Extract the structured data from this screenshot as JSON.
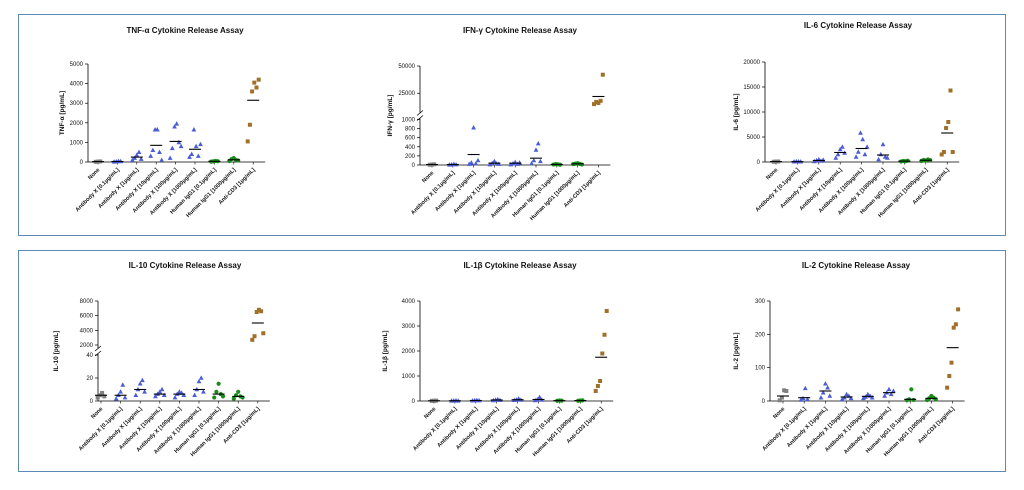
{
  "colors": {
    "border": "#5b8ab8",
    "none": "#808080",
    "antibody": "#4a5cd6",
    "igg": "#1a8a1a",
    "cd3": "#a0702a"
  },
  "chart_data": [
    {
      "type": "scatter",
      "title": "TNF-α Cytokine Release Assay",
      "ylabel": "TNF-α [pg/mL]",
      "ylim": [
        0,
        5000
      ],
      "yticks": [
        "0",
        "1000",
        "2000",
        "3000",
        "4000",
        "5000"
      ],
      "ytick_values": [
        0,
        1000,
        2000,
        3000,
        4000,
        5000
      ],
      "categories": [
        "None",
        "Antibody X [0.1µg/mL]",
        "Antibody X [1µg/mL]",
        "Antibody X [10µg/mL]",
        "Antibody X [100µg/mL]",
        "Antibody X [1000µg/mL]",
        "Human IgG1 [0.1µg/mL]",
        "Human IgG1 [1000µg/mL]",
        "Anti-CD3 [1µg/mL]"
      ],
      "groups": [
        {
          "values": [
            10,
            20,
            30
          ],
          "mean": 20,
          "marker": "square",
          "color": "none"
        },
        {
          "values": [
            10,
            20,
            40,
            30
          ],
          "mean": 25,
          "marker": "triangle",
          "color": "antibody"
        },
        {
          "values": [
            100,
            200,
            350,
            500,
            150
          ],
          "mean": 250,
          "marker": "triangle",
          "color": "antibody"
        },
        {
          "values": [
            300,
            600,
            1650,
            1650,
            500,
            100
          ],
          "mean": 850,
          "marker": "triangle",
          "color": "antibody"
        },
        {
          "values": [
            200,
            700,
            1800,
            1950,
            1000,
            800
          ],
          "mean": 1050,
          "marker": "triangle",
          "color": "antibody"
        },
        {
          "values": [
            250,
            400,
            1650,
            800,
            300,
            900
          ],
          "mean": 650,
          "marker": "triangle",
          "color": "antibody"
        },
        {
          "values": [
            20,
            30,
            50,
            40
          ],
          "mean": 35,
          "marker": "circle",
          "color": "igg"
        },
        {
          "values": [
            50,
            150,
            200,
            100,
            80
          ],
          "mean": 110,
          "marker": "circle",
          "color": "igg"
        },
        {
          "values": [
            1050,
            1900,
            3600,
            4050,
            3800,
            4200
          ],
          "mean": 3150,
          "marker": "square",
          "color": "cd3"
        }
      ]
    },
    {
      "type": "scatter",
      "title": "IFN-γ Cytokine Release Assay",
      "ylabel": "IFN-γ [pg/mL]",
      "ylim": [
        0,
        50000
      ],
      "axis_break": {
        "lower_max": 1000,
        "upper_min": 10000,
        "upper_max": 50000
      },
      "yticks": [
        "0",
        "200",
        "400",
        "600",
        "800",
        "1000",
        "25000",
        "50000"
      ],
      "ytick_values": [
        0,
        200,
        400,
        600,
        800,
        1000,
        25000,
        50000
      ],
      "categories": [
        "None",
        "Antibody X [0.1µg/mL]",
        "Antibody X [1µg/mL]",
        "Antibody X [10µg/mL]",
        "Antibody X [100µg/mL]",
        "Antibody X [1000µg/mL]",
        "Human IgG1 [0.1µg/mL]",
        "Human IgG1 [1000µg/mL]",
        "Anti-CD3 [1µg/mL]"
      ],
      "groups": [
        {
          "values": [
            5,
            10,
            15
          ],
          "mean": 10,
          "marker": "square",
          "color": "none"
        },
        {
          "values": [
            5,
            10,
            20,
            8
          ],
          "mean": 10,
          "marker": "triangle",
          "color": "antibody"
        },
        {
          "values": [
            20,
            50,
            820,
            30,
            100
          ],
          "mean": 230,
          "marker": "triangle",
          "color": "antibody"
        },
        {
          "values": [
            10,
            40,
            80,
            30,
            20
          ],
          "mean": 40,
          "marker": "triangle",
          "color": "antibody"
        },
        {
          "values": [
            10,
            30,
            60,
            20,
            50
          ],
          "mean": 40,
          "marker": "triangle",
          "color": "antibody"
        },
        {
          "values": [
            30,
            100,
            330,
            470,
            80
          ],
          "mean": 150,
          "marker": "triangle",
          "color": "antibody"
        },
        {
          "values": [
            10,
            20,
            15,
            5
          ],
          "mean": 12,
          "marker": "circle",
          "color": "igg"
        },
        {
          "values": [
            20,
            30,
            40,
            25,
            10
          ],
          "mean": 25,
          "marker": "circle",
          "color": "igg"
        },
        {
          "values": [
            15000,
            17000,
            16000,
            18000,
            42000
          ],
          "mean": 22000,
          "marker": "square",
          "color": "cd3"
        }
      ]
    },
    {
      "type": "scatter",
      "title": "IL-6 Cytokine Release Assay",
      "ylabel": "IL-6 [pg/mL]",
      "ylim": [
        0,
        20000
      ],
      "yticks": [
        "0",
        "5000",
        "10000",
        "15000",
        "20000"
      ],
      "ytick_values": [
        0,
        5000,
        10000,
        15000,
        20000
      ],
      "categories": [
        "None",
        "Antibody X [0.1µg/mL]",
        "Antibody X [1µg/mL]",
        "Antibody X [10µg/mL]",
        "Antibody X [100µg/mL]",
        "Antibody X [1000µg/mL]",
        "Human IgG1 [0.1µg/mL]",
        "Human IgG1 [1000µg/mL]",
        "Anti-CD3 [1µg/mL]"
      ],
      "groups": [
        {
          "values": [
            50,
            80,
            100
          ],
          "mean": 80,
          "marker": "square",
          "color": "none"
        },
        {
          "values": [
            50,
            100,
            80,
            60
          ],
          "mean": 70,
          "marker": "triangle",
          "color": "antibody"
        },
        {
          "values": [
            100,
            300,
            500,
            200,
            400
          ],
          "mean": 300,
          "marker": "triangle",
          "color": "antibody"
        },
        {
          "values": [
            800,
            1500,
            2500,
            3000,
            1800
          ],
          "mean": 1900,
          "marker": "triangle",
          "color": "antibody"
        },
        {
          "values": [
            1000,
            2000,
            5800,
            4500,
            1500,
            3000
          ],
          "mean": 2700,
          "marker": "triangle",
          "color": "antibody"
        },
        {
          "values": [
            500,
            1500,
            3500,
            1000,
            800
          ],
          "mean": 1400,
          "marker": "triangle",
          "color": "antibody"
        },
        {
          "values": [
            100,
            200,
            150,
            250
          ],
          "mean": 180,
          "marker": "circle",
          "color": "igg"
        },
        {
          "values": [
            200,
            400,
            300,
            500,
            350
          ],
          "mean": 350,
          "marker": "circle",
          "color": "igg"
        },
        {
          "values": [
            1500,
            2000,
            6800,
            8000,
            14300,
            2000
          ],
          "mean": 5800,
          "marker": "square",
          "color": "cd3"
        }
      ]
    },
    {
      "type": "scatter",
      "title": "IL-10 Cytokine Release Assay",
      "ylabel": "IL-10 [pg/mL]",
      "ylim": [
        0,
        8000
      ],
      "axis_break": {
        "lower_max": 40,
        "upper_min": 2000,
        "upper_max": 8000
      },
      "yticks": [
        "0",
        "20",
        "40",
        "2000",
        "4000",
        "6000",
        "8000"
      ],
      "ytick_values": [
        0,
        20,
        40,
        2000,
        4000,
        6000,
        8000
      ],
      "categories": [
        "None",
        "Antibody X [0.1µg/mL]",
        "Antibody X [1µg/mL]",
        "Antibody X [10µg/mL]",
        "Antibody X [100µg/mL]",
        "Antibody X [1000µg/mL]",
        "Human IgG1 [0.1µg/mL]",
        "Human IgG1 [1000µg/mL]",
        "Anti-CD3 [1µg/mL]"
      ],
      "groups": [
        {
          "values": [
            3,
            5,
            7,
            4
          ],
          "mean": 5,
          "marker": "square",
          "color": "none"
        },
        {
          "values": [
            2,
            5,
            8,
            14,
            3
          ],
          "mean": 5,
          "marker": "triangle",
          "color": "antibody"
        },
        {
          "values": [
            5,
            10,
            15,
            18,
            8
          ],
          "mean": 10,
          "marker": "triangle",
          "color": "antibody"
        },
        {
          "values": [
            4,
            6,
            8,
            10,
            5
          ],
          "mean": 6,
          "marker": "triangle",
          "color": "antibody"
        },
        {
          "values": [
            3,
            6,
            8,
            7,
            5
          ],
          "mean": 6,
          "marker": "triangle",
          "color": "antibody"
        },
        {
          "values": [
            5,
            10,
            17,
            20,
            8
          ],
          "mean": 10,
          "marker": "triangle",
          "color": "antibody"
        },
        {
          "values": [
            3,
            8,
            15,
            6,
            4
          ],
          "mean": 6,
          "marker": "circle",
          "color": "igg"
        },
        {
          "values": [
            2,
            5,
            8,
            4,
            3
          ],
          "mean": 4,
          "marker": "circle",
          "color": "igg"
        },
        {
          "values": [
            2700,
            3200,
            6500,
            6800,
            6600,
            3600
          ],
          "mean": 5000,
          "marker": "square",
          "color": "cd3"
        }
      ]
    },
    {
      "type": "scatter",
      "title": "IL-1β Cytokine Release Assay",
      "ylabel": "IL-1β [pg/mL]",
      "ylim": [
        0,
        4000
      ],
      "yticks": [
        "0",
        "1000",
        "2000",
        "3000",
        "4000"
      ],
      "ytick_values": [
        0,
        1000,
        2000,
        3000,
        4000
      ],
      "categories": [
        "None",
        "Antibody X [0.1µg/mL]",
        "Antibody X [1µg/mL]",
        "Antibody X [10µg/mL]",
        "Antibody X [100µg/mL]",
        "Antibody X [1000µg/mL]",
        "Human IgG1 [0.1µg/mL]",
        "Human IgG1 [1000µg/mL]",
        "Anti-CD3 [1µg/mL]"
      ],
      "groups": [
        {
          "values": [
            5,
            10,
            15
          ],
          "mean": 10,
          "marker": "square",
          "color": "none"
        },
        {
          "values": [
            5,
            10,
            15,
            8
          ],
          "mean": 10,
          "marker": "triangle",
          "color": "antibody"
        },
        {
          "values": [
            10,
            20,
            30,
            15
          ],
          "mean": 20,
          "marker": "triangle",
          "color": "antibody"
        },
        {
          "values": [
            20,
            40,
            60,
            30
          ],
          "mean": 40,
          "marker": "triangle",
          "color": "antibody"
        },
        {
          "values": [
            30,
            50,
            90,
            40
          ],
          "mean": 50,
          "marker": "triangle",
          "color": "antibody"
        },
        {
          "values": [
            20,
            60,
            150,
            40
          ],
          "mean": 60,
          "marker": "triangle",
          "color": "antibody"
        },
        {
          "values": [
            10,
            20,
            15
          ],
          "mean": 15,
          "marker": "circle",
          "color": "igg"
        },
        {
          "values": [
            10,
            20,
            25
          ],
          "mean": 18,
          "marker": "circle",
          "color": "igg"
        },
        {
          "values": [
            400,
            600,
            800,
            1900,
            2650,
            3600
          ],
          "mean": 1750,
          "marker": "square",
          "color": "cd3"
        }
      ]
    },
    {
      "type": "scatter",
      "title": "IL-2 Cytokine Release Assay",
      "ylabel": "IL-2 [pg/mL]",
      "ylim": [
        0,
        300
      ],
      "yticks": [
        "0",
        "100",
        "200",
        "300"
      ],
      "ytick_values": [
        0,
        100,
        200,
        300
      ],
      "categories": [
        "None",
        "Antibody X [0.1µg/mL]",
        "Antibody X [1µg/mL]",
        "Antibody X [10µg/mL]",
        "Antibody X [100µg/mL]",
        "Antibody X [1000µg/mL]",
        "Human IgG1 [0.1µg/mL]",
        "Human IgG1 [1000µg/mL]",
        "Anti-CD3 [1µg/mL]"
      ],
      "groups": [
        {
          "values": [
            2,
            10,
            32,
            30
          ],
          "mean": 15,
          "marker": "square",
          "color": "none"
        },
        {
          "values": [
            3,
            8,
            38,
            5
          ],
          "mean": 10,
          "marker": "triangle",
          "color": "antibody"
        },
        {
          "values": [
            10,
            25,
            52,
            40,
            15
          ],
          "mean": 30,
          "marker": "triangle",
          "color": "antibody"
        },
        {
          "values": [
            5,
            10,
            20,
            15,
            8
          ],
          "mean": 12,
          "marker": "triangle",
          "color": "antibody"
        },
        {
          "values": [
            8,
            12,
            20,
            15,
            10
          ],
          "mean": 14,
          "marker": "triangle",
          "color": "antibody"
        },
        {
          "values": [
            15,
            25,
            35,
            20,
            30
          ],
          "mean": 25,
          "marker": "triangle",
          "color": "antibody"
        },
        {
          "values": [
            2,
            5,
            35,
            3
          ],
          "mean": 5,
          "marker": "circle",
          "color": "igg"
        },
        {
          "values": [
            3,
            8,
            15,
            10,
            5
          ],
          "mean": 8,
          "marker": "circle",
          "color": "igg"
        },
        {
          "values": [
            40,
            75,
            115,
            220,
            230,
            275
          ],
          "mean": 160,
          "marker": "square",
          "color": "cd3"
        }
      ]
    }
  ]
}
